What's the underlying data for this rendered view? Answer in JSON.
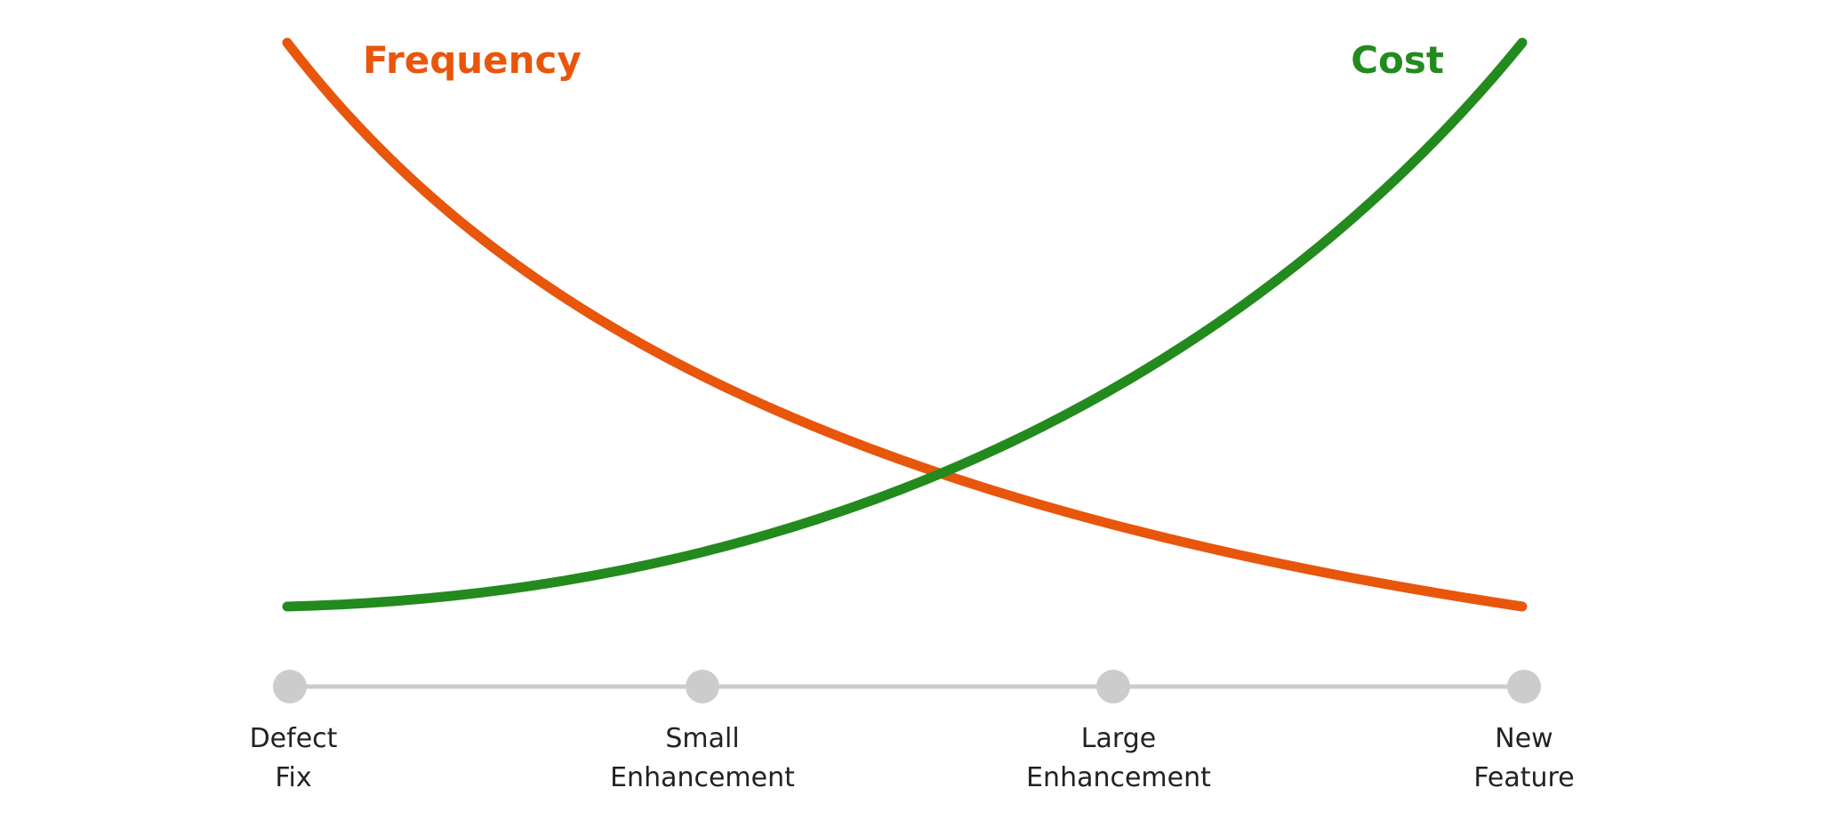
{
  "colors": {
    "frequency": "#e8560c",
    "cost": "#238a1e",
    "timeline": "#cccccc",
    "text": "#222222"
  },
  "series": {
    "frequency": {
      "label": "Frequency"
    },
    "cost": {
      "label": "Cost"
    }
  },
  "timeline": {
    "stages": [
      {
        "line1": "Defect",
        "line2": "Fix"
      },
      {
        "line1": "Small",
        "line2": "Enhancement"
      },
      {
        "line1": "Large",
        "line2": "Enhancement"
      },
      {
        "line1": "New",
        "line2": "Feature"
      }
    ]
  }
}
